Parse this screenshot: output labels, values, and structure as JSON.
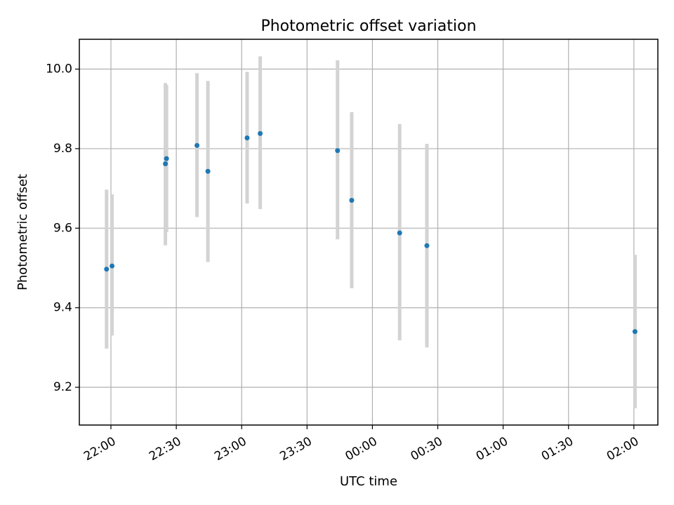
{
  "colors": {
    "points": "#1f77b4",
    "error_bars": "#d3d3d3",
    "grid": "#b0b0b0"
  },
  "chart_data": {
    "type": "scatter",
    "title": "Photometric offset variation",
    "xlabel": "UTC time",
    "ylabel": "Photometric offset",
    "grid": true,
    "x_ticks": [
      "22:00",
      "22:30",
      "23:00",
      "23:30",
      "00:00",
      "00:30",
      "01:00",
      "01:30",
      "02:00"
    ],
    "x_tick_minutes": [
      0,
      30,
      60,
      90,
      120,
      150,
      180,
      210,
      240
    ],
    "x_range_minutes": [
      -14.5,
      251
    ],
    "y_ticks": [
      "9.2",
      "9.4",
      "9.6",
      "9.8",
      "10.0"
    ],
    "y_tick_values": [
      9.2,
      9.4,
      9.6,
      9.8,
      10.0
    ],
    "ylim": [
      9.105,
      10.075
    ],
    "series": [
      {
        "x_minutes": [
          -2,
          0.5,
          25,
          25.5,
          39.5,
          44.5,
          62.5,
          68.5,
          104,
          110.5,
          132.5,
          145,
          240.5
        ],
        "x": [
          "21:58",
          "22:00",
          "22:25",
          "22:25",
          "22:39",
          "22:44",
          "23:02",
          "23:08",
          "23:44",
          "23:50",
          "00:12",
          "00:25",
          "02:00"
        ],
        "y": [
          9.497,
          9.505,
          9.762,
          9.775,
          9.808,
          9.743,
          9.827,
          9.838,
          9.795,
          9.67,
          9.588,
          9.556,
          9.34
        ],
        "y_err_low": [
          9.297,
          9.33,
          9.557,
          9.59,
          9.628,
          9.515,
          9.662,
          9.648,
          9.572,
          9.449,
          9.318,
          9.3,
          9.147
        ],
        "y_err_high": [
          9.697,
          9.685,
          9.965,
          9.96,
          9.99,
          9.97,
          9.993,
          10.032,
          10.022,
          9.892,
          9.862,
          9.812,
          9.533
        ]
      }
    ]
  }
}
